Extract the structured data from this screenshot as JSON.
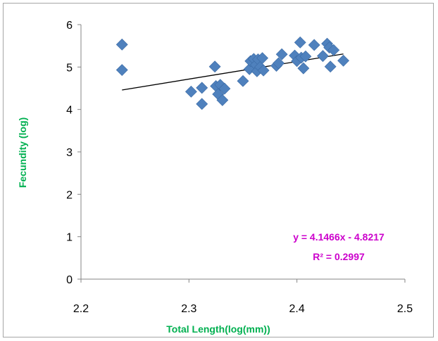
{
  "chart_data": {
    "type": "scatter",
    "title": "",
    "xlabel": "Total Length(log(mm))",
    "ylabel": "Fecundity (log)",
    "xlim": [
      2.2,
      2.5
    ],
    "ylim": [
      0,
      6
    ],
    "x_ticks": [
      "2.2",
      "2.3",
      "2.4",
      "2.5"
    ],
    "y_ticks": [
      "0",
      "1",
      "2",
      "3",
      "4",
      "5",
      "6"
    ],
    "grid": false,
    "legend": "none",
    "marker": "diamond",
    "marker_color": "#4f81bd",
    "points": [
      {
        "x": 2.238,
        "y": 5.53
      },
      {
        "x": 2.238,
        "y": 4.93
      },
      {
        "x": 2.302,
        "y": 4.42
      },
      {
        "x": 2.312,
        "y": 4.13
      },
      {
        "x": 2.312,
        "y": 4.51
      },
      {
        "x": 2.324,
        "y": 5.01
      },
      {
        "x": 2.325,
        "y": 4.55
      },
      {
        "x": 2.327,
        "y": 4.36
      },
      {
        "x": 2.329,
        "y": 4.58
      },
      {
        "x": 2.331,
        "y": 4.22
      },
      {
        "x": 2.333,
        "y": 4.49
      },
      {
        "x": 2.35,
        "y": 4.67
      },
      {
        "x": 2.356,
        "y": 4.95
      },
      {
        "x": 2.357,
        "y": 5.14
      },
      {
        "x": 2.36,
        "y": 5.19
      },
      {
        "x": 2.362,
        "y": 5.05
      },
      {
        "x": 2.363,
        "y": 4.9
      },
      {
        "x": 2.364,
        "y": 5.18
      },
      {
        "x": 2.366,
        "y": 5.0
      },
      {
        "x": 2.368,
        "y": 5.21
      },
      {
        "x": 2.369,
        "y": 4.92
      },
      {
        "x": 2.381,
        "y": 5.03
      },
      {
        "x": 2.383,
        "y": 5.09
      },
      {
        "x": 2.386,
        "y": 5.3
      },
      {
        "x": 2.398,
        "y": 5.27
      },
      {
        "x": 2.4,
        "y": 5.14
      },
      {
        "x": 2.403,
        "y": 5.58
      },
      {
        "x": 2.404,
        "y": 5.22
      },
      {
        "x": 2.406,
        "y": 4.97
      },
      {
        "x": 2.408,
        "y": 5.25
      },
      {
        "x": 2.416,
        "y": 5.52
      },
      {
        "x": 2.424,
        "y": 5.26
      },
      {
        "x": 2.428,
        "y": 5.55
      },
      {
        "x": 2.43,
        "y": 5.46
      },
      {
        "x": 2.431,
        "y": 5.01
      },
      {
        "x": 2.434,
        "y": 5.4
      },
      {
        "x": 2.443,
        "y": 5.15
      }
    ],
    "trendline": {
      "type": "linear",
      "slope": 4.1466,
      "intercept": -4.8217,
      "x_range": [
        2.238,
        2.443
      ],
      "color": "#000000",
      "equation_text": "y = 4.1466x - 4.8217",
      "r2_text": "R² = 0.2997",
      "label_color": "#cc00cc"
    },
    "axis_title_color": "#00b050"
  }
}
